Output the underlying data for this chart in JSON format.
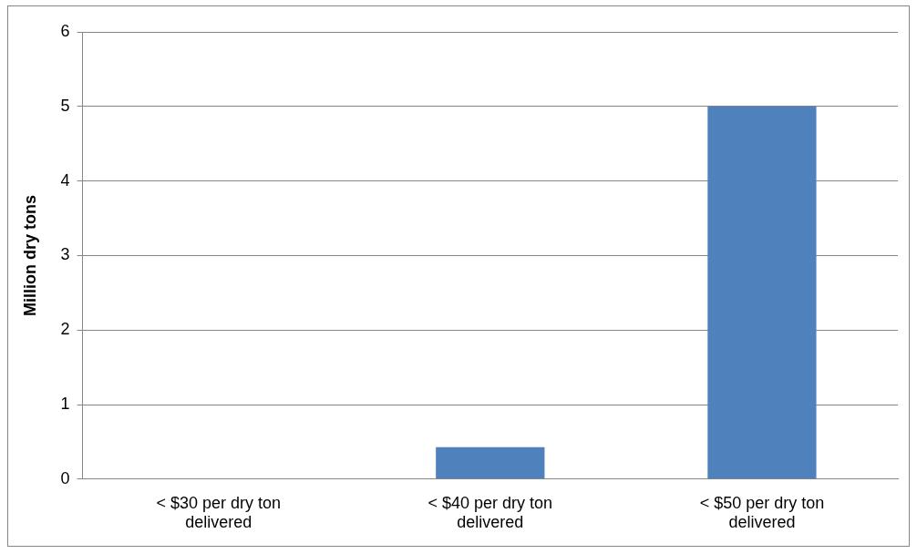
{
  "chart_data": {
    "type": "bar",
    "ylabel": "Million dry tons",
    "categories": [
      "< $30 per dry ton delivered",
      "< $40 per dry ton delivered",
      "< $50 per dry ton delivered"
    ],
    "values": [
      0,
      0.43,
      5.0
    ],
    "color": "#4f81bd",
    "ylim": [
      0,
      6
    ],
    "yticks": [
      0,
      1,
      2,
      3,
      4,
      5,
      6
    ],
    "grid": "y"
  }
}
